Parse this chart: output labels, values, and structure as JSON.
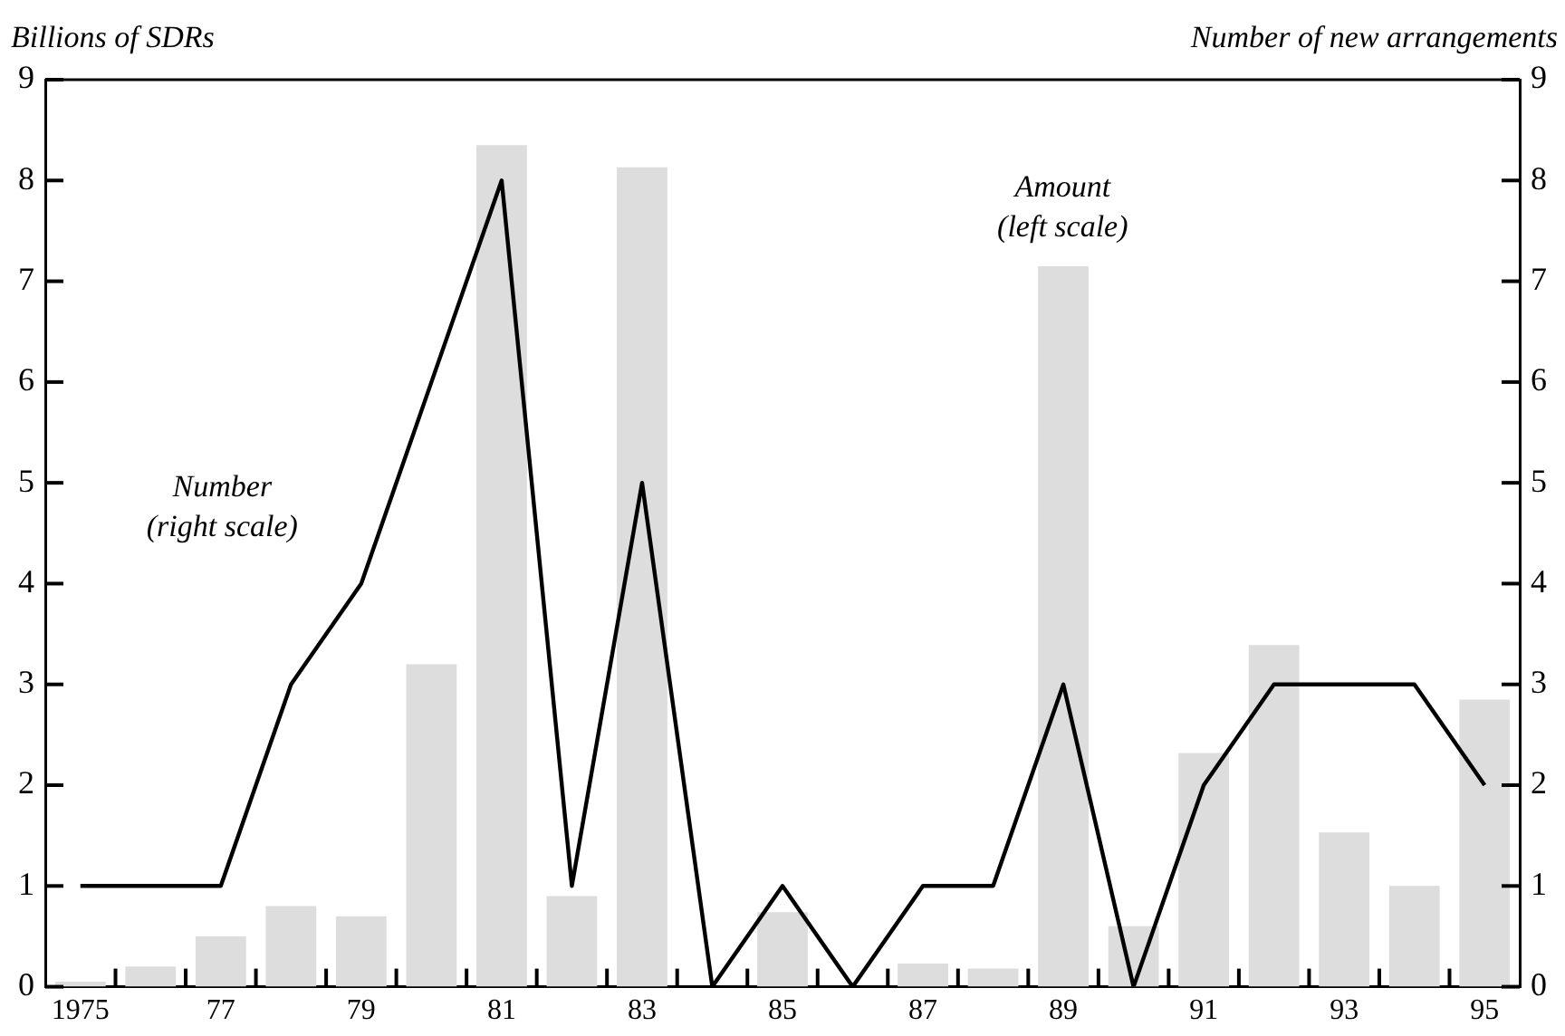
{
  "chart_data": {
    "type": "bar",
    "ylabel": "Billions of SDRs",
    "y2label": "Number of new arrangements",
    "categories": [
      "1975",
      null,
      "77",
      null,
      "79",
      null,
      "81",
      null,
      "83",
      null,
      "85",
      null,
      "87",
      null,
      "89",
      null,
      "91",
      null,
      "93",
      null,
      "95"
    ],
    "series": [
      {
        "color": "#dddddd",
        "values": [
          0.05,
          0.2,
          0.5,
          0.8,
          0.7,
          3.2,
          8.35,
          0.9,
          8.13,
          0,
          0.74,
          0,
          0.23,
          0.18,
          7.15,
          0.6,
          2.32,
          3.39,
          1.53,
          1.0,
          2.85
        ]
      },
      {
        "type": "line",
        "axis": "y2",
        "color": "#000000",
        "values": [
          1,
          1,
          1,
          3,
          4,
          6,
          8,
          1,
          5,
          0,
          1,
          0,
          1,
          1,
          3,
          0,
          2,
          3,
          3,
          3,
          2
        ]
      }
    ],
    "ylim": [
      0,
      9
    ],
    "yticks": [
      0,
      1,
      2,
      3,
      4,
      5,
      6,
      7,
      8,
      9
    ],
    "y2lim": [
      0,
      9
    ],
    "y2ticks": [
      0,
      1,
      2,
      3,
      4,
      5,
      6,
      7,
      8,
      9
    ],
    "grid": false,
    "legend": false,
    "marker": "none",
    "line_style": "solid",
    "annotations": [
      "Number\n(right scale)",
      "Amount\n(left scale)"
    ]
  }
}
